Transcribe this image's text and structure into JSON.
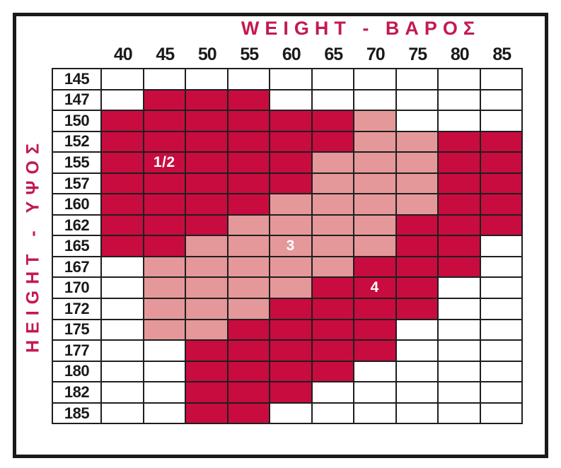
{
  "title": "WEIGHT - ΒΑΡΟΣ",
  "side_label": "HEIGHT - ΥΨΟΣ",
  "colors": {
    "dark_red": "#C80C3F",
    "pink": "#E59899",
    "accent_text": "#C31A4F",
    "grid_line": "#1F1F1F",
    "size_label_text": "#FFFFFF",
    "number_text": "#1A1A1A"
  },
  "chart_data": {
    "type": "heatmap",
    "title": "WEIGHT - ΒΑΡΟΣ",
    "xlabel": "WEIGHT - ΒΑΡΟΣ",
    "ylabel": "HEIGHT - ΥΨΟΣ",
    "x_categories": [
      "40",
      "45",
      "50",
      "55",
      "60",
      "65",
      "70",
      "75",
      "80",
      "85"
    ],
    "y_categories": [
      "145",
      "147",
      "150",
      "152",
      "155",
      "157",
      "160",
      "162",
      "165",
      "167",
      "170",
      "172",
      "175",
      "177",
      "180",
      "182",
      "185"
    ],
    "legend": {
      "R": "dark-red cell (sizes 1/2 and 4)",
      "P": "pink cell (size 3)",
      "": "white empty cell"
    },
    "cells": [
      [
        "",
        "",
        "",
        "",
        "",
        "",
        "",
        "",
        "",
        ""
      ],
      [
        "",
        "R",
        "R",
        "R",
        "",
        "",
        "",
        "",
        "",
        ""
      ],
      [
        "R",
        "R",
        "R",
        "R",
        "R",
        "R",
        "P",
        "",
        "",
        ""
      ],
      [
        "R",
        "R",
        "R",
        "R",
        "R",
        "R",
        "P",
        "P",
        "R",
        "R"
      ],
      [
        "R",
        "R",
        "R",
        "R",
        "R",
        "P",
        "P",
        "P",
        "R",
        "R"
      ],
      [
        "R",
        "R",
        "R",
        "R",
        "R",
        "P",
        "P",
        "P",
        "R",
        "R"
      ],
      [
        "R",
        "R",
        "R",
        "R",
        "P",
        "P",
        "P",
        "P",
        "R",
        "R"
      ],
      [
        "R",
        "R",
        "R",
        "P",
        "P",
        "P",
        "P",
        "R",
        "R",
        "R"
      ],
      [
        "R",
        "R",
        "P",
        "P",
        "P",
        "P",
        "P",
        "R",
        "R",
        ""
      ],
      [
        "",
        "P",
        "P",
        "P",
        "P",
        "P",
        "R",
        "R",
        "R",
        ""
      ],
      [
        "",
        "P",
        "P",
        "P",
        "P",
        "R",
        "R",
        "R",
        "",
        ""
      ],
      [
        "",
        "P",
        "P",
        "P",
        "R",
        "R",
        "R",
        "R",
        "",
        ""
      ],
      [
        "",
        "P",
        "P",
        "R",
        "R",
        "R",
        "R",
        "",
        "",
        ""
      ],
      [
        "",
        "",
        "R",
        "R",
        "R",
        "R",
        "R",
        "",
        "",
        ""
      ],
      [
        "",
        "",
        "R",
        "R",
        "R",
        "R",
        "",
        "",
        "",
        ""
      ],
      [
        "",
        "",
        "R",
        "R",
        "R",
        "",
        "",
        "",
        "",
        ""
      ],
      [
        "",
        "",
        "R",
        "R",
        "",
        "",
        "",
        "",
        "",
        ""
      ]
    ],
    "size_labels": [
      {
        "text": "1/2",
        "row": "155",
        "col": "45"
      },
      {
        "text": "3",
        "row": "165",
        "col": "60"
      },
      {
        "text": "4",
        "row": "170",
        "col": "70"
      }
    ]
  }
}
